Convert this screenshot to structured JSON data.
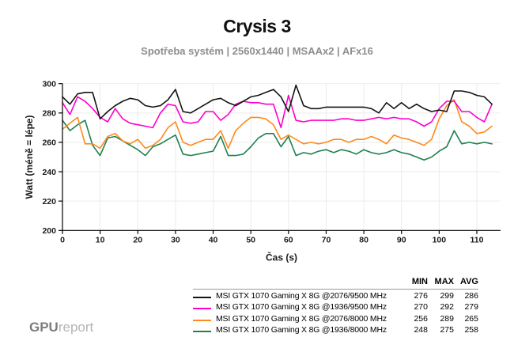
{
  "logo": {
    "gpu": "GPU",
    "report": "report"
  },
  "legend": {
    "columns": [
      "MIN",
      "MAX",
      "AVG"
    ]
  },
  "chart_data": {
    "type": "line",
    "title": "Crysis 3",
    "subtitle": "Spotřeba systém | 2560x1440 | MSAAx2 | AFx16",
    "xlabel": "Čas (s)",
    "ylabel": "Watt (méně = lépe)",
    "xlim": [
      0,
      116.3
    ],
    "ylim": [
      200,
      300
    ],
    "xticks": [
      0,
      10,
      20,
      30,
      40,
      50,
      60,
      70,
      80,
      90,
      100,
      110
    ],
    "yticks": [
      200,
      220,
      240,
      260,
      280,
      300
    ],
    "grid": true,
    "grid_color": "#ebebeb",
    "axis_color": "#000000",
    "legend_position": "bottom-right",
    "x": [
      0,
      2,
      4,
      6,
      8,
      10,
      12,
      14,
      16,
      18,
      20,
      22,
      24,
      26,
      28,
      30,
      32,
      34,
      36,
      38,
      40,
      42,
      44,
      46,
      48,
      50,
      52,
      54,
      56,
      58,
      60,
      62,
      64,
      66,
      68,
      70,
      72,
      74,
      76,
      78,
      80,
      82,
      84,
      86,
      88,
      90,
      92,
      94,
      96,
      98,
      100,
      102,
      104,
      106,
      108,
      110,
      112,
      114
    ],
    "series": [
      {
        "name": "MSI GTX 1070 Gaming X 8G @2076/9500 MHz",
        "color": "#141414",
        "min": 276,
        "max": 299,
        "avg": 286,
        "values": [
          291,
          286,
          293,
          294,
          294,
          276,
          281,
          285,
          288,
          290,
          289,
          285,
          284,
          285,
          289,
          296,
          281,
          280,
          283,
          286,
          289,
          290,
          287,
          285,
          288,
          291,
          292,
          294,
          296,
          291,
          281,
          299,
          285,
          283,
          283,
          284,
          284,
          284,
          284,
          284,
          284,
          283,
          280,
          287,
          283,
          287,
          283,
          286,
          283,
          281,
          282,
          281,
          295,
          295,
          294,
          292,
          291,
          286
        ]
      },
      {
        "name": "MSI GTX 1070 Gaming X 8G @1936/9500 MHz",
        "color": "#ff00cc",
        "min": 270,
        "max": 292,
        "avg": 279,
        "values": [
          287,
          279,
          291,
          288,
          283,
          277,
          274,
          283,
          276,
          273,
          272,
          271,
          270,
          280,
          286,
          285,
          274,
          273,
          274,
          281,
          281,
          275,
          279,
          286,
          288,
          287,
          287,
          286,
          286,
          270,
          292,
          275,
          274,
          275,
          275,
          275,
          275,
          276,
          276,
          275,
          275,
          276,
          277,
          276,
          277,
          276,
          276,
          274,
          271,
          274,
          283,
          288,
          288,
          281,
          281,
          277,
          274,
          286
        ]
      },
      {
        "name": "MSI GTX 1070 Gaming X 8G @2076/8000 MHz",
        "color": "#ff8a1e",
        "min": 256,
        "max": 289,
        "avg": 265,
        "values": [
          269,
          273,
          277,
          259,
          259,
          256,
          264,
          266,
          261,
          259,
          262,
          256,
          258,
          262,
          270,
          274,
          260,
          258,
          260,
          262,
          262,
          268,
          256,
          268,
          273,
          277,
          277,
          276,
          272,
          262,
          265,
          262,
          259,
          260,
          259,
          260,
          262,
          262,
          260,
          262,
          262,
          264,
          262,
          259,
          265,
          263,
          262,
          260,
          258,
          262,
          276,
          285,
          289,
          274,
          271,
          266,
          267,
          271
        ]
      },
      {
        "name": "MSI GTX 1070 Gaming X 8G @1936/8000 MHz",
        "color": "#1f8150",
        "min": 248,
        "max": 275,
        "avg": 258,
        "values": [
          275,
          268,
          272,
          275,
          258,
          251,
          263,
          264,
          261,
          258,
          255,
          251,
          257,
          259,
          262,
          265,
          252,
          251,
          252,
          253,
          254,
          264,
          251,
          251,
          252,
          257,
          263,
          266,
          266,
          257,
          264,
          251,
          253,
          252,
          254,
          255,
          253,
          255,
          254,
          252,
          255,
          253,
          252,
          253,
          255,
          253,
          252,
          250,
          248,
          250,
          254,
          257,
          268,
          259,
          260,
          259,
          260,
          259
        ]
      }
    ]
  }
}
